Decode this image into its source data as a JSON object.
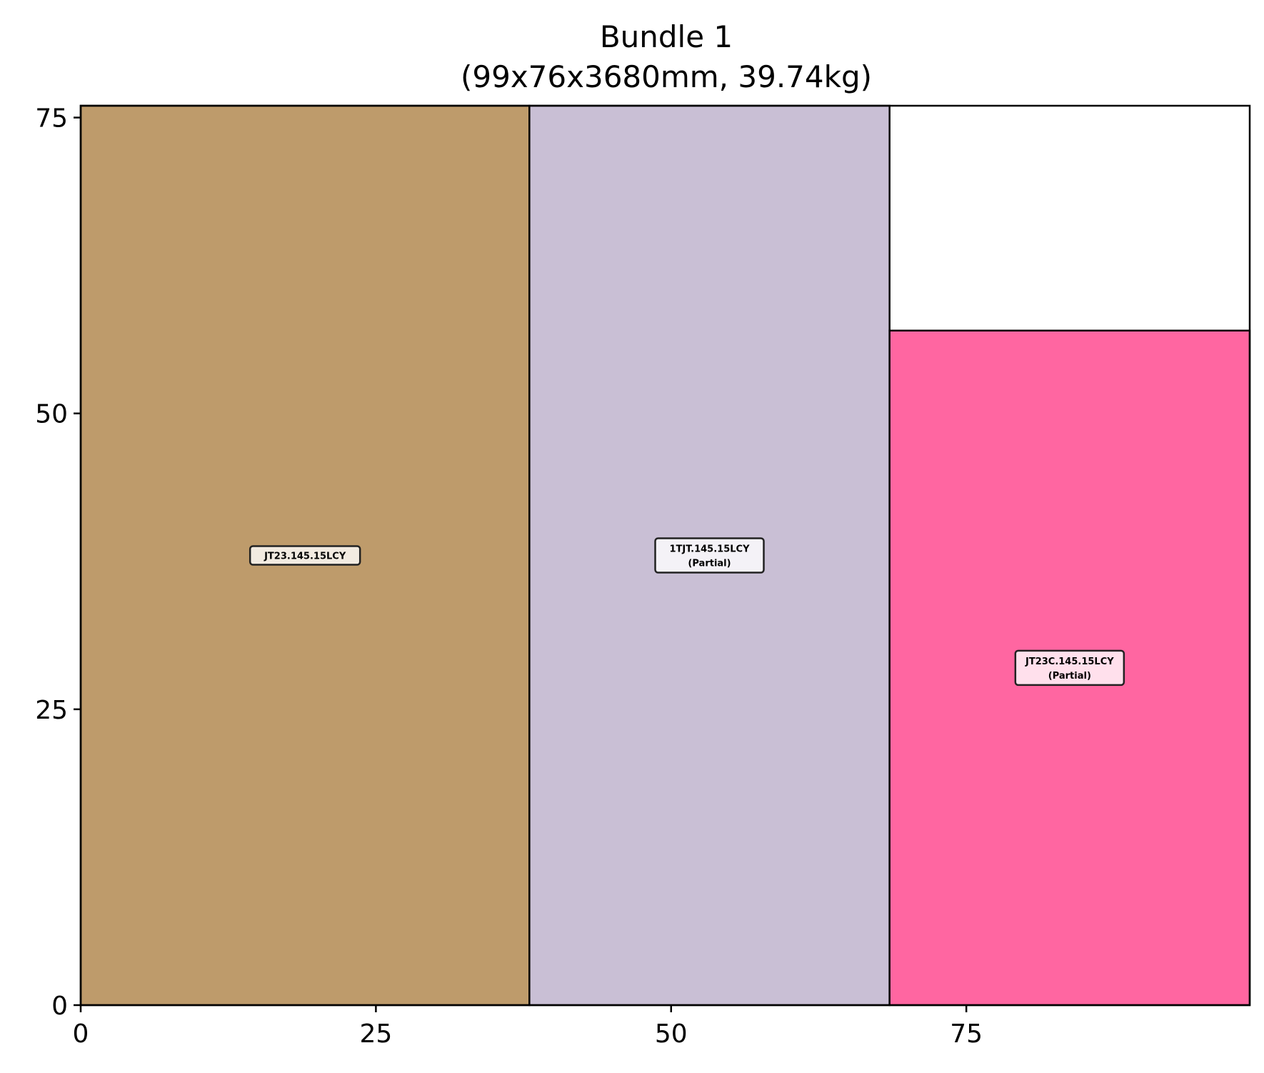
{
  "chart_data": {
    "type": "rectangle-packing",
    "title_line1": "Bundle 1",
    "title_line2": "(99x76x3680mm, 39.74kg)",
    "xlim": [
      0,
      99
    ],
    "ylim": [
      0,
      76
    ],
    "xticks": [
      0,
      25,
      50,
      75
    ],
    "yticks": [
      0,
      25,
      50,
      75
    ],
    "grid": false,
    "pieces": [
      {
        "label": "JT23.145.15LCY",
        "sublabel": "",
        "x": 0,
        "y": 0,
        "width": 38,
        "height": 76,
        "color": "#BE9B6B"
      },
      {
        "label": "1TJT.145.15LCY",
        "sublabel": "(Partial)",
        "x": 38,
        "y": 0,
        "width": 30.5,
        "height": 76,
        "color": "#C9BFD5"
      },
      {
        "label": "JT23C.145.15LCY",
        "sublabel": "(Partial)",
        "x": 68.5,
        "y": 0,
        "width": 30.5,
        "height": 57,
        "color": "#FF66A1"
      }
    ]
  }
}
